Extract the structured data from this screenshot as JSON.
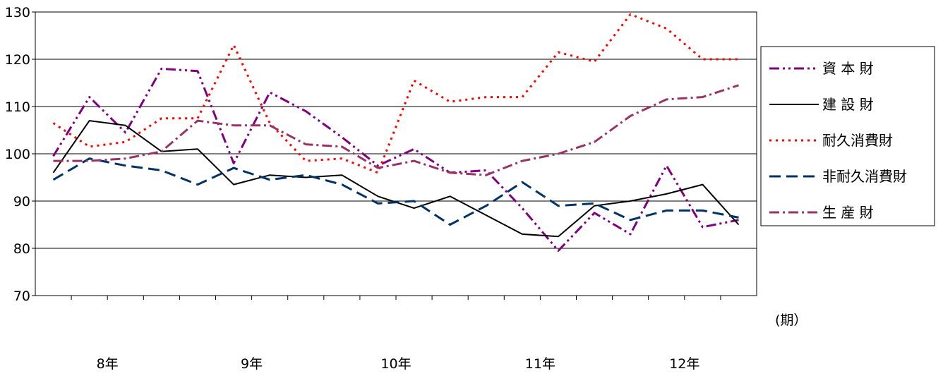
{
  "chart_data": {
    "type": "line",
    "ylim": [
      70,
      130
    ],
    "y_ticks": [
      "130",
      "120",
      "110",
      "100",
      "90",
      "80",
      "70"
    ],
    "grid": true,
    "legend_position": "right",
    "x_unit_label": "(期）",
    "x_labels": [
      "8年",
      "9年",
      "10年",
      "11年",
      "12年"
    ],
    "x": [
      1,
      2,
      3,
      4,
      5,
      6,
      7,
      8,
      9,
      10,
      11,
      12,
      13,
      14,
      15,
      16,
      17,
      18,
      19,
      20
    ],
    "series": [
      {
        "name": "資 本 財",
        "color": "#800080",
        "dash": "14,5,3,5,3,5",
        "width": 3,
        "values": [
          99.5,
          112,
          104.5,
          118,
          117.5,
          98,
          113,
          109,
          103.5,
          97.5,
          101,
          96,
          96.5,
          88.5,
          79.5,
          87.5,
          83,
          97.5,
          84.5,
          86
        ]
      },
      {
        "name": "建 設 財",
        "color": "#000000",
        "dash": "",
        "width": 2,
        "values": [
          96,
          107,
          106,
          100.5,
          101,
          93.5,
          95.5,
          95,
          95.5,
          91,
          88.5,
          91,
          87,
          83,
          82.5,
          89,
          90,
          91.5,
          93.5,
          85
        ]
      },
      {
        "name": "耐久消費財",
        "color": "#ff0000",
        "dash": "3,6",
        "width": 3,
        "values": [
          106.5,
          101.5,
          102.5,
          107.5,
          107.5,
          123,
          106.5,
          98.5,
          99,
          96,
          115.5,
          111,
          112,
          112,
          121.5,
          119.5,
          129.5,
          126.5,
          120,
          120
        ]
      },
      {
        "name": "非耐久消費財",
        "color": "#003366",
        "dash": "16,8",
        "width": 3,
        "values": [
          94.5,
          99,
          97.5,
          96.5,
          93.5,
          97,
          94.5,
          95.5,
          93.5,
          89.5,
          90,
          85,
          89,
          94,
          89,
          89.5,
          86,
          88,
          88,
          86.5
        ]
      },
      {
        "name": "生 産 財",
        "color": "#993366",
        "dash": "14,5,3,5",
        "width": 3,
        "values": [
          98.5,
          98.5,
          99,
          100.5,
          107,
          106,
          106,
          102,
          101.5,
          97,
          98.5,
          96,
          95.5,
          98.5,
          100,
          102.5,
          108,
          111.5,
          112,
          114.5
        ]
      }
    ]
  }
}
